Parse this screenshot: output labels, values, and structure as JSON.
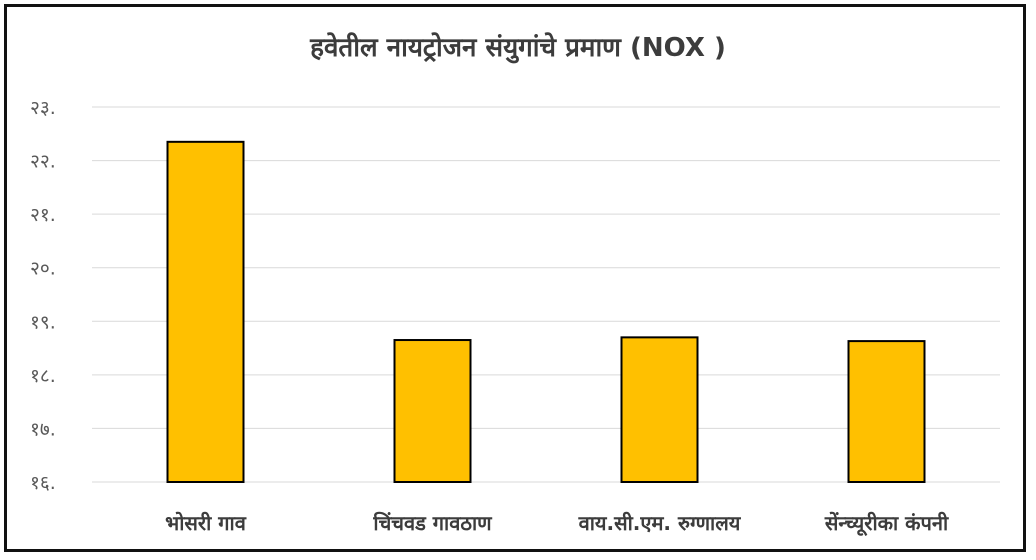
{
  "chart_data": {
    "type": "bar",
    "title": "हवेतील नायट्रोजन संयुगांचे  प्रमाण (NOX )",
    "categories": [
      "भोसरी गाव",
      "चिंचवड गावठाण",
      "वाय.सी.एम. रुग्णालय",
      "सेंन्च्यूरीका कंपनी"
    ],
    "values": [
      22.35,
      18.65,
      18.7,
      18.63
    ],
    "ylim": [
      16,
      23
    ],
    "yticks": [
      16,
      17,
      18,
      19,
      20,
      21,
      22,
      23
    ],
    "ytick_labels": [
      "१६.",
      "१७.",
      "१८.",
      "१९.",
      "२०.",
      "२१.",
      "२२.",
      "२३."
    ],
    "xlabel": "",
    "ylabel": "",
    "grid": true,
    "bar_color": "#FFC000",
    "bar_edge_color": "#000000",
    "grid_color": "#d9d9d9"
  }
}
